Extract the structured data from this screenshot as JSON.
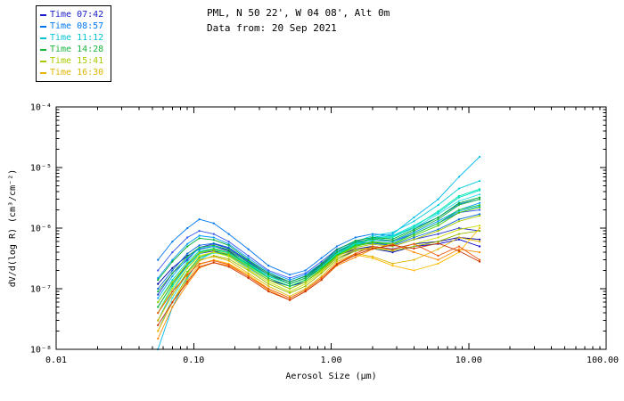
{
  "header": {
    "title_line1": "PML, N 50 22', W 04 08', Alt 0m",
    "title_line2": "Data from: 20 Sep 2021"
  },
  "legend": {
    "items": [
      {
        "label": "Time 07:42",
        "color": "#1a1acc"
      },
      {
        "label": "Time 08:57",
        "color": "#0077ee"
      },
      {
        "label": "Time 11:12",
        "color": "#00c4d4"
      },
      {
        "label": "Time 14:28",
        "color": "#18b53c"
      },
      {
        "label": "Time 15:41",
        "color": "#a8c800"
      },
      {
        "label": "Time 16:30",
        "color": "#e0b400"
      }
    ]
  },
  "chart_data": {
    "type": "line",
    "title": "PML, N 50 22', W 04 08', Alt 0m",
    "subtitle": "Data from: 20 Sep 2021",
    "xlabel": "Aerosol Size (μm)",
    "ylabel": "dV/d(log R) (cm³/cm⁻²)",
    "xscale": "log",
    "yscale": "log",
    "xlim": [
      0.01,
      100
    ],
    "ylim": [
      1e-08,
      0.0001
    ],
    "grid": false,
    "legend_position": "top-left",
    "xticks": [
      {
        "value": 0.01,
        "label": "0.01"
      },
      {
        "value": 0.1,
        "label": "0.10"
      },
      {
        "value": 1.0,
        "label": "1.00"
      },
      {
        "value": 10.0,
        "label": "10.00"
      },
      {
        "value": 100.0,
        "label": "100.00"
      }
    ],
    "yticks": [
      {
        "value": 1e-08,
        "label": "10⁻⁸"
      },
      {
        "value": 1e-07,
        "label": "10⁻⁷"
      },
      {
        "value": 1e-06,
        "label": "10⁻⁶"
      },
      {
        "value": 1e-05,
        "label": "10⁻⁵"
      },
      {
        "value": 0.0001,
        "label": "10⁻⁴"
      }
    ],
    "x": [
      0.055,
      0.07,
      0.09,
      0.11,
      0.14,
      0.18,
      0.25,
      0.35,
      0.5,
      0.65,
      0.85,
      1.1,
      1.5,
      2.0,
      2.8,
      4.0,
      6.0,
      8.5,
      12.0
    ],
    "series": [
      {
        "name": "Time 07:42",
        "color": "#000099",
        "values": [
          1.2e-07,
          2.2e-07,
          3.5e-07,
          4.5e-07,
          5e-07,
          4.2e-07,
          2.5e-07,
          1.6e-07,
          1.2e-07,
          1.5e-07,
          2.2e-07,
          3.5e-07,
          4.5e-07,
          5e-07,
          4.5e-07,
          5.5e-07,
          6e-07,
          7e-07,
          6.5e-07
        ]
      },
      {
        "name": "Time 07:42",
        "color": "#2233cc",
        "values": [
          8e-08,
          1.8e-07,
          3e-07,
          4.8e-07,
          5.5e-07,
          4.6e-07,
          2.8e-07,
          1.7e-07,
          1.3e-07,
          1.6e-07,
          2.5e-07,
          4e-07,
          5.5e-07,
          6e-07,
          5e-07,
          6.5e-07,
          8e-07,
          1e-06,
          9e-07
        ]
      },
      {
        "name": "Time 07:42",
        "color": "#3355ee",
        "values": [
          2e-07,
          4e-07,
          7e-07,
          9e-07,
          8e-07,
          6e-07,
          3.5e-07,
          2e-07,
          1.5e-07,
          1.8e-07,
          2.8e-07,
          4.5e-07,
          6e-07,
          6.5e-07,
          6e-07,
          8e-07,
          1.2e-06,
          1.8e-06,
          2e-06
        ]
      },
      {
        "name": "Time 07:42",
        "color": "#0000cc",
        "values": [
          5e-08,
          1.2e-07,
          2.5e-07,
          3.8e-07,
          4.2e-07,
          3.6e-07,
          2.2e-07,
          1.4e-07,
          1.1e-07,
          1.3e-07,
          2e-07,
          3.2e-07,
          4.2e-07,
          4.6e-07,
          4e-07,
          5e-07,
          5.5e-07,
          6.5e-07,
          5e-07
        ]
      },
      {
        "name": "Time 08:57",
        "color": "#0077ee",
        "values": [
          3e-07,
          6e-07,
          1e-06,
          1.4e-06,
          1.2e-06,
          8e-07,
          4.5e-07,
          2.4e-07,
          1.7e-07,
          2e-07,
          3.2e-07,
          5e-07,
          7e-07,
          8e-07,
          7.5e-07,
          1e-06,
          1.5e-06,
          2.5e-06,
          3e-06
        ]
      },
      {
        "name": "Time 08:57",
        "color": "#0099ff",
        "values": [
          1.5e-07,
          3e-07,
          5.5e-07,
          7.5e-07,
          7e-07,
          5.5e-07,
          3.2e-07,
          1.9e-07,
          1.4e-07,
          1.7e-07,
          2.6e-07,
          4.2e-07,
          5.8e-07,
          6.4e-07,
          6e-07,
          8.5e-07,
          1.3e-06,
          2e-06,
          2.6e-06
        ]
      },
      {
        "name": "Time 08:57",
        "color": "#0066dd",
        "values": [
          1e-07,
          2e-07,
          3.8e-07,
          5.2e-07,
          5.6e-07,
          4.8e-07,
          2.9e-07,
          1.8e-07,
          1.3e-07,
          1.6e-07,
          2.4e-07,
          3.8e-07,
          5.2e-07,
          5.6e-07,
          5.2e-07,
          7e-07,
          9.5e-07,
          1.4e-06,
          1.7e-06
        ]
      },
      {
        "name": "Time 08:57",
        "color": "#00aaff",
        "values": [
          7e-08,
          1.6e-07,
          3.2e-07,
          4.6e-07,
          5e-07,
          4.4e-07,
          2.7e-07,
          1.6e-07,
          1.2e-07,
          1.5e-07,
          2.3e-07,
          3.8e-07,
          5.4e-07,
          6e-07,
          5.6e-07,
          8e-07,
          1.2e-06,
          1.9e-06,
          2.3e-06
        ]
      },
      {
        "name": "Time 11:12",
        "color": "#00bbee",
        "values": [
          1e-08,
          5e-08,
          1.5e-07,
          3e-07,
          4e-07,
          3.8e-07,
          2.4e-07,
          1.5e-07,
          1.1e-07,
          1.4e-07,
          2.2e-07,
          3.6e-07,
          5.5e-07,
          7e-07,
          8e-07,
          1.5e-06,
          3e-06,
          7e-06,
          1.5e-05
        ]
      },
      {
        "name": "Time 11:12",
        "color": "#00ccdd",
        "values": [
          3e-08,
          9e-08,
          2.2e-07,
          3.8e-07,
          4.4e-07,
          4e-07,
          2.6e-07,
          1.6e-07,
          1.2e-07,
          1.5e-07,
          2.4e-07,
          4e-07,
          6e-07,
          7.5e-07,
          8.5e-07,
          1.3e-06,
          2.4e-06,
          4.5e-06,
          6e-06
        ]
      },
      {
        "name": "Time 11:12",
        "color": "#00ddcc",
        "values": [
          6e-08,
          1.4e-07,
          2.8e-07,
          4.2e-07,
          4.6e-07,
          4e-07,
          2.5e-07,
          1.6e-07,
          1.2e-07,
          1.5e-07,
          2.3e-07,
          3.8e-07,
          5.6e-07,
          6.8e-07,
          7.5e-07,
          1.1e-06,
          1.8e-06,
          3.2e-06,
          4.2e-06
        ]
      },
      {
        "name": "Time 11:12",
        "color": "#33ddee",
        "values": [
          2e-08,
          7e-08,
          1.8e-07,
          3.2e-07,
          3.9e-07,
          3.5e-07,
          2.2e-07,
          1.4e-07,
          1e-07,
          1.3e-07,
          2e-07,
          3.4e-07,
          5e-07,
          6.2e-07,
          7e-07,
          1e-06,
          1.7e-06,
          2.8e-06,
          3.6e-06
        ]
      },
      {
        "name": "Time 11:12",
        "color": "#00e5aa",
        "values": [
          4e-08,
          1.1e-07,
          2.4e-07,
          3.9e-07,
          4.4e-07,
          3.9e-07,
          2.4e-07,
          1.5e-07,
          1.1e-07,
          1.4e-07,
          2.2e-07,
          3.7e-07,
          5.4e-07,
          6.6e-07,
          7.2e-07,
          1.05e-06,
          1.9e-06,
          3.4e-06,
          4.4e-06
        ]
      },
      {
        "name": "Time 14:28",
        "color": "#18b53c",
        "values": [
          9e-08,
          1.8e-07,
          3.4e-07,
          4.8e-07,
          5.2e-07,
          4.4e-07,
          2.7e-07,
          1.7e-07,
          1.2e-07,
          1.5e-07,
          2.4e-07,
          4e-07,
          5.8e-07,
          6.6e-07,
          6.2e-07,
          9e-07,
          1.4e-06,
          2.4e-06,
          3e-06
        ]
      },
      {
        "name": "Time 14:28",
        "color": "#22cc33",
        "values": [
          5e-08,
          1.2e-07,
          2.6e-07,
          4e-07,
          4.6e-07,
          4e-07,
          2.5e-07,
          1.5e-07,
          1.1e-07,
          1.4e-07,
          2.2e-07,
          3.6e-07,
          5.2e-07,
          6e-07,
          5.6e-07,
          8e-07,
          1.2e-06,
          2e-06,
          2.4e-06
        ]
      },
      {
        "name": "Time 14:28",
        "color": "#00aa33",
        "values": [
          1.4e-07,
          2.8e-07,
          5e-07,
          6.8e-07,
          6.4e-07,
          5.2e-07,
          3e-07,
          1.8e-07,
          1.3e-07,
          1.6e-07,
          2.6e-07,
          4.4e-07,
          6.2e-07,
          7e-07,
          6.6e-07,
          9.5e-07,
          1.5e-06,
          2.6e-06,
          3.2e-06
        ]
      },
      {
        "name": "Time 14:28",
        "color": "#44cc00",
        "values": [
          3e-08,
          8e-08,
          1.9e-07,
          3.3e-07,
          4e-07,
          3.6e-07,
          2.3e-07,
          1.4e-07,
          1e-07,
          1.3e-07,
          2.1e-07,
          3.5e-07,
          5e-07,
          5.8e-07,
          5.4e-07,
          7.5e-07,
          1.1e-06,
          1.8e-06,
          2.2e-06
        ]
      },
      {
        "name": "Time 15:41",
        "color": "#a8c800",
        "values": [
          6e-08,
          1.3e-07,
          2.6e-07,
          3.9e-07,
          4.3e-07,
          3.7e-07,
          2.3e-07,
          1.4e-07,
          1e-07,
          1.3e-07,
          2e-07,
          3.4e-07,
          4.8e-07,
          5.4e-07,
          5e-07,
          6.5e-07,
          9e-07,
          1.3e-06,
          1.6e-06
        ]
      },
      {
        "name": "Time 15:41",
        "color": "#ccdd00",
        "values": [
          4e-08,
          1e-07,
          2.2e-07,
          3.5e-07,
          4e-07,
          3.4e-07,
          2.1e-07,
          1.3e-07,
          9e-08,
          1.2e-07,
          1.9e-07,
          3.2e-07,
          4.4e-07,
          4.8e-07,
          4.4e-07,
          5.5e-07,
          7e-07,
          9.5e-07,
          1.1e-06
        ]
      },
      {
        "name": "Time 15:41",
        "color": "#99bb00",
        "values": [
          2e-08,
          6e-08,
          1.6e-07,
          2.9e-07,
          3.5e-07,
          3.1e-07,
          2e-07,
          1.2e-07,
          8.5e-08,
          1.1e-07,
          1.8e-07,
          3e-07,
          4.2e-07,
          4.6e-07,
          4.2e-07,
          5e-07,
          6e-07,
          8e-07,
          9e-07
        ]
      },
      {
        "name": "Time 16:30",
        "color": "#e0b400",
        "values": [
          3e-08,
          8e-08,
          1.8e-07,
          3e-07,
          3.4e-07,
          2.9e-07,
          1.8e-07,
          1.1e-07,
          7.5e-08,
          1e-07,
          1.6e-07,
          2.8e-07,
          3.8e-07,
          3.4e-07,
          2.6e-07,
          3e-07,
          4.5e-07,
          7e-07,
          6e-07
        ]
      },
      {
        "name": "Time 16:30",
        "color": "#ffbb00",
        "values": [
          2e-08,
          6e-08,
          1.4e-07,
          2.5e-07,
          3e-07,
          2.6e-07,
          1.7e-07,
          1e-07,
          7e-08,
          9.5e-08,
          1.5e-07,
          2.6e-07,
          3.6e-07,
          3.2e-07,
          2.4e-07,
          2e-07,
          2.6e-07,
          4e-07,
          1e-06
        ]
      },
      {
        "name": "Time 16:30",
        "color": "#ff8800",
        "values": [
          1.5e-08,
          5e-08,
          1.2e-07,
          2.2e-07,
          2.7e-07,
          2.4e-07,
          1.6e-07,
          9.5e-08,
          6.5e-08,
          9e-08,
          1.4e-07,
          2.4e-07,
          3.3e-07,
          4.5e-07,
          5.5e-07,
          4e-07,
          3e-07,
          4.5e-07,
          4e-07
        ]
      },
      {
        "name": "Time 16:30",
        "color": "#ee5511",
        "values": [
          4e-08,
          9e-08,
          1.7e-07,
          2.6e-07,
          2.9e-07,
          2.5e-07,
          1.6e-07,
          1e-07,
          7e-08,
          9.5e-08,
          1.5e-07,
          2.6e-07,
          3.8e-07,
          5e-07,
          4.4e-07,
          5.5e-07,
          3.5e-07,
          5e-07,
          3e-07
        ]
      },
      {
        "name": "Time 16:30",
        "color": "#cc3300",
        "values": [
          2.5e-08,
          6e-08,
          1.3e-07,
          2.3e-07,
          2.7e-07,
          2.3e-07,
          1.5e-07,
          9e-08,
          6.5e-08,
          9e-08,
          1.4e-07,
          2.5e-07,
          3.6e-07,
          4.6e-07,
          5.2e-07,
          4.6e-07,
          5.6e-07,
          4.2e-07,
          2.8e-07
        ]
      }
    ]
  }
}
